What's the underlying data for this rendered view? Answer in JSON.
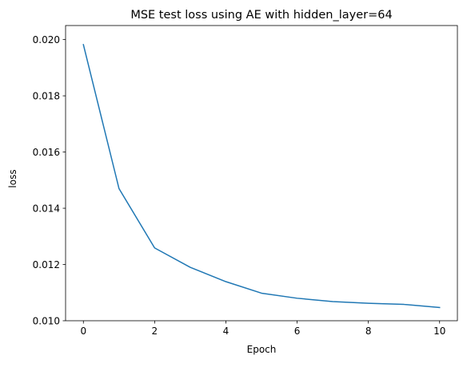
{
  "chart_data": {
    "type": "line",
    "title": "MSE test loss using AE with hidden_layer=64",
    "xlabel": "Epoch",
    "ylabel": "loss",
    "xlim": [
      -0.5,
      10.5
    ],
    "ylim": [
      0.01,
      0.0205
    ],
    "xticks": [
      0,
      2,
      4,
      6,
      8,
      10
    ],
    "xtick_labels": [
      "0",
      "2",
      "4",
      "6",
      "8",
      "10"
    ],
    "yticks": [
      0.01,
      0.012,
      0.014,
      0.016,
      0.018,
      0.02
    ],
    "ytick_labels": [
      "0.010",
      "0.012",
      "0.014",
      "0.016",
      "0.018",
      "0.020"
    ],
    "grid": false,
    "series": [
      {
        "x": [
          0,
          1,
          2,
          3,
          4,
          5,
          6,
          7,
          8,
          9,
          10
        ],
        "y": [
          0.01982,
          0.0147,
          0.01259,
          0.0119,
          0.01139,
          0.01098,
          0.0108,
          0.01068,
          0.01062,
          0.01058,
          0.01047
        ],
        "color": "#1f77b4"
      }
    ]
  }
}
